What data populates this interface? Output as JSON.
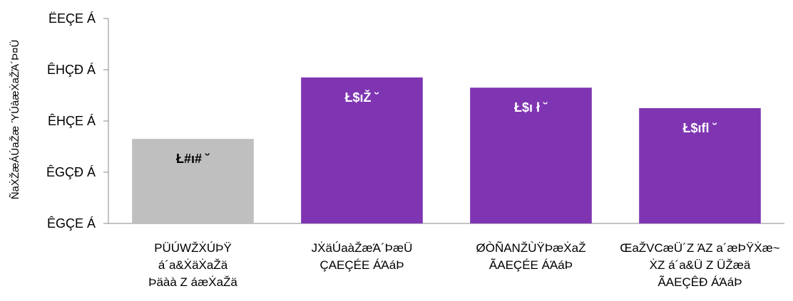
{
  "chart_data": {
    "type": "bar",
    "ylabel": "ÑaẊŽæÁÚaŽæ ΎÚàæẊaŽΆ´Þ¤Ü",
    "yticks": [
      "ÊGÇE Á",
      "ÊGÇÐ Á",
      "ÊHÇE Á",
      "ÊHÇÐ Á",
      "ËEÇE Á"
    ],
    "ylim": [
      0,
      4
    ],
    "categories": [
      [
        "PÜÚWŽẊÚÞŸ",
        "á´a&ẊäẊaŽä",
        "Þäàà Z áæẊaŽä"
      ],
      [
        "JẊäÚaàŽæΆ´ÞæÜ",
        "ÇAEÇÉE ÁΆáÞ"
      ],
      [
        "ØÒÑANŽÙŸÞæẊaŽ",
        "ÃAEÇÉE ÁΆáÞ"
      ],
      [
        "ŒaŽVCæÜ´Z ΆZ a´æÞŸẊæ~",
        "ẊZ á´a&Ü Z ÜŽæä",
        "ÃAEÇÊÐ ÁΆáÞ"
      ]
    ],
    "values": [
      1.65,
      2.85,
      2.65,
      2.25
    ],
    "data_labels": [
      "Ł#ı# ˘",
      "Ł$ıŽ ˘",
      "Ł$ı ł ˘",
      "Ł$ıfl ˘"
    ],
    "colors": [
      "#bfbfbf",
      "#7f35b2",
      "#7f35b2",
      "#7f35b2"
    ],
    "label_colors": [
      "#000000",
      "#ffffff",
      "#ffffff",
      "#ffffff"
    ],
    "grid": false
  }
}
